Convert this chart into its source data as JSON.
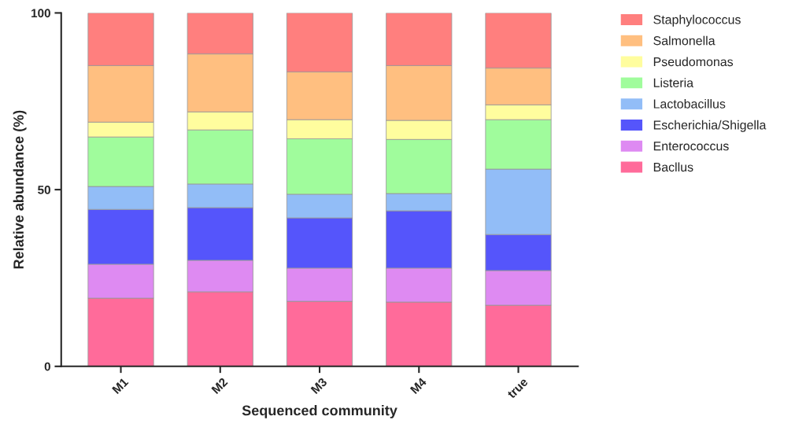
{
  "chart_data": {
    "type": "bar",
    "stacked": true,
    "xlabel": "Sequenced community",
    "ylabel": "Relative abundance (%)",
    "categories": [
      "M1",
      "M2",
      "M3",
      "M4",
      "true"
    ],
    "series": [
      {
        "name": "Bacllus",
        "color": "#ff6b9a",
        "values": [
          19.3,
          21.1,
          18.4,
          18.2,
          17.3
        ]
      },
      {
        "name": "Enterococcus",
        "color": "#de8af2",
        "values": [
          9.6,
          8.9,
          9.4,
          9.6,
          9.8
        ]
      },
      {
        "name": "Escherichia/Shigella",
        "color": "#5555fb",
        "values": [
          15.5,
          14.9,
          14.2,
          16.2,
          10.2
        ]
      },
      {
        "name": "Lactobacillus",
        "color": "#92bdf7",
        "values": [
          6.5,
          6.7,
          6.7,
          4.9,
          18.5
        ]
      },
      {
        "name": "Listeria",
        "color": "#a0fc9c",
        "values": [
          14.0,
          15.3,
          15.7,
          15.3,
          14.0
        ]
      },
      {
        "name": "Pseudomonas",
        "color": "#fffd9e",
        "values": [
          4.2,
          5.1,
          5.4,
          5.4,
          4.2
        ]
      },
      {
        "name": "Salmonella",
        "color": "#ffbf80",
        "values": [
          16.0,
          16.4,
          13.5,
          15.5,
          10.4
        ]
      },
      {
        "name": "Staphylococcus",
        "color": "#ff7f7e",
        "values": [
          14.9,
          11.6,
          16.7,
          14.9,
          15.6
        ]
      }
    ],
    "ylim": [
      0,
      100
    ],
    "yticks": [
      0,
      50,
      100
    ],
    "legend": "right",
    "grid": false
  }
}
